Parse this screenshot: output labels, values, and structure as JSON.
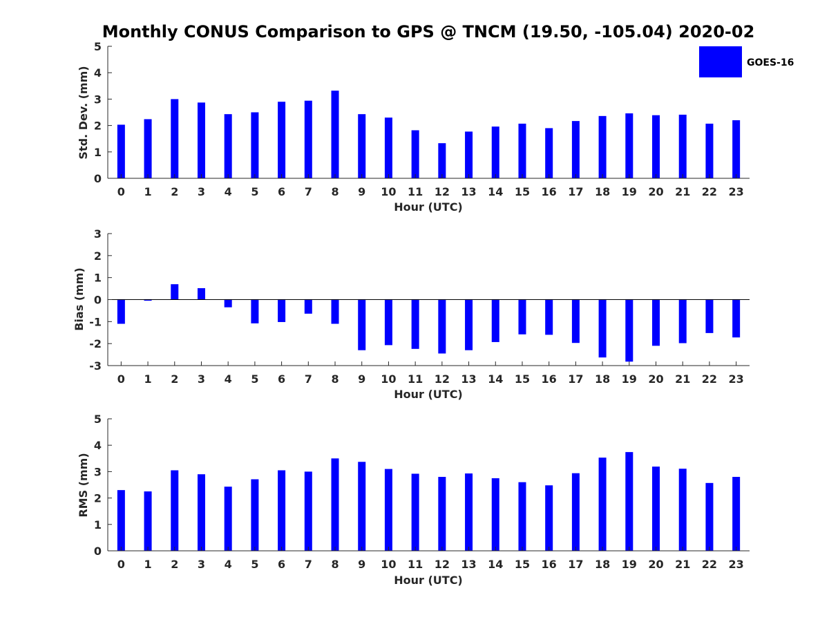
{
  "figure_title": "Monthly CONUS Comparison to GPS @ TNCM (19.50, -105.04) 2020-02",
  "legend": {
    "label": "GOES-16",
    "color": "#0000ff"
  },
  "bar_color": "#0000ff",
  "chart_data": [
    {
      "type": "bar",
      "title": "",
      "xlabel": "Hour (UTC)",
      "ylabel": "Std. Dev. (mm)",
      "categories": [
        "0",
        "1",
        "2",
        "3",
        "4",
        "5",
        "6",
        "7",
        "8",
        "9",
        "10",
        "11",
        "12",
        "13",
        "14",
        "15",
        "16",
        "17",
        "18",
        "19",
        "20",
        "21",
        "22",
        "23"
      ],
      "series": [
        {
          "name": "GOES-16",
          "values": [
            2.03,
            2.24,
            3.0,
            2.87,
            2.43,
            2.5,
            2.9,
            2.94,
            3.32,
            2.43,
            2.3,
            1.82,
            1.33,
            1.77,
            1.96,
            2.07,
            1.9,
            2.17,
            2.36,
            2.46,
            2.39,
            2.41,
            2.07,
            2.2
          ]
        }
      ],
      "ylim": [
        0,
        5
      ],
      "yticks": [
        0,
        1,
        2,
        3,
        4,
        5
      ],
      "grid": false,
      "legend_position": "top-right"
    },
    {
      "type": "bar",
      "title": "",
      "xlabel": "Hour (UTC)",
      "ylabel": "Bias (mm)",
      "categories": [
        "0",
        "1",
        "2",
        "3",
        "4",
        "5",
        "6",
        "7",
        "8",
        "9",
        "10",
        "11",
        "12",
        "13",
        "14",
        "15",
        "16",
        "17",
        "18",
        "19",
        "20",
        "21",
        "22",
        "23"
      ],
      "series": [
        {
          "name": "GOES-16",
          "values": [
            -1.1,
            -0.05,
            0.7,
            0.52,
            -0.35,
            -1.08,
            -1.02,
            -0.64,
            -1.1,
            -2.3,
            -2.07,
            -2.24,
            -2.45,
            -2.3,
            -1.93,
            -1.58,
            -1.6,
            -1.97,
            -2.63,
            -2.82,
            -2.1,
            -1.98,
            -1.52,
            -1.72
          ]
        }
      ],
      "ylim": [
        -3,
        3
      ],
      "yticks": [
        -3,
        -2,
        -1,
        0,
        1,
        2,
        3
      ],
      "grid": false,
      "zero_line": true
    },
    {
      "type": "bar",
      "title": "",
      "xlabel": "Hour (UTC)",
      "ylabel": "RMS (mm)",
      "categories": [
        "0",
        "1",
        "2",
        "3",
        "4",
        "5",
        "6",
        "7",
        "8",
        "9",
        "10",
        "11",
        "12",
        "13",
        "14",
        "15",
        "16",
        "17",
        "18",
        "19",
        "20",
        "21",
        "22",
        "23"
      ],
      "series": [
        {
          "name": "GOES-16",
          "values": [
            2.3,
            2.25,
            3.05,
            2.9,
            2.43,
            2.71,
            3.05,
            3.0,
            3.5,
            3.37,
            3.1,
            2.92,
            2.8,
            2.93,
            2.75,
            2.6,
            2.48,
            2.94,
            3.53,
            3.74,
            3.19,
            3.11,
            2.57,
            2.8
          ]
        }
      ],
      "ylim": [
        0,
        5
      ],
      "yticks": [
        0,
        1,
        2,
        3,
        4,
        5
      ],
      "grid": false
    }
  ]
}
